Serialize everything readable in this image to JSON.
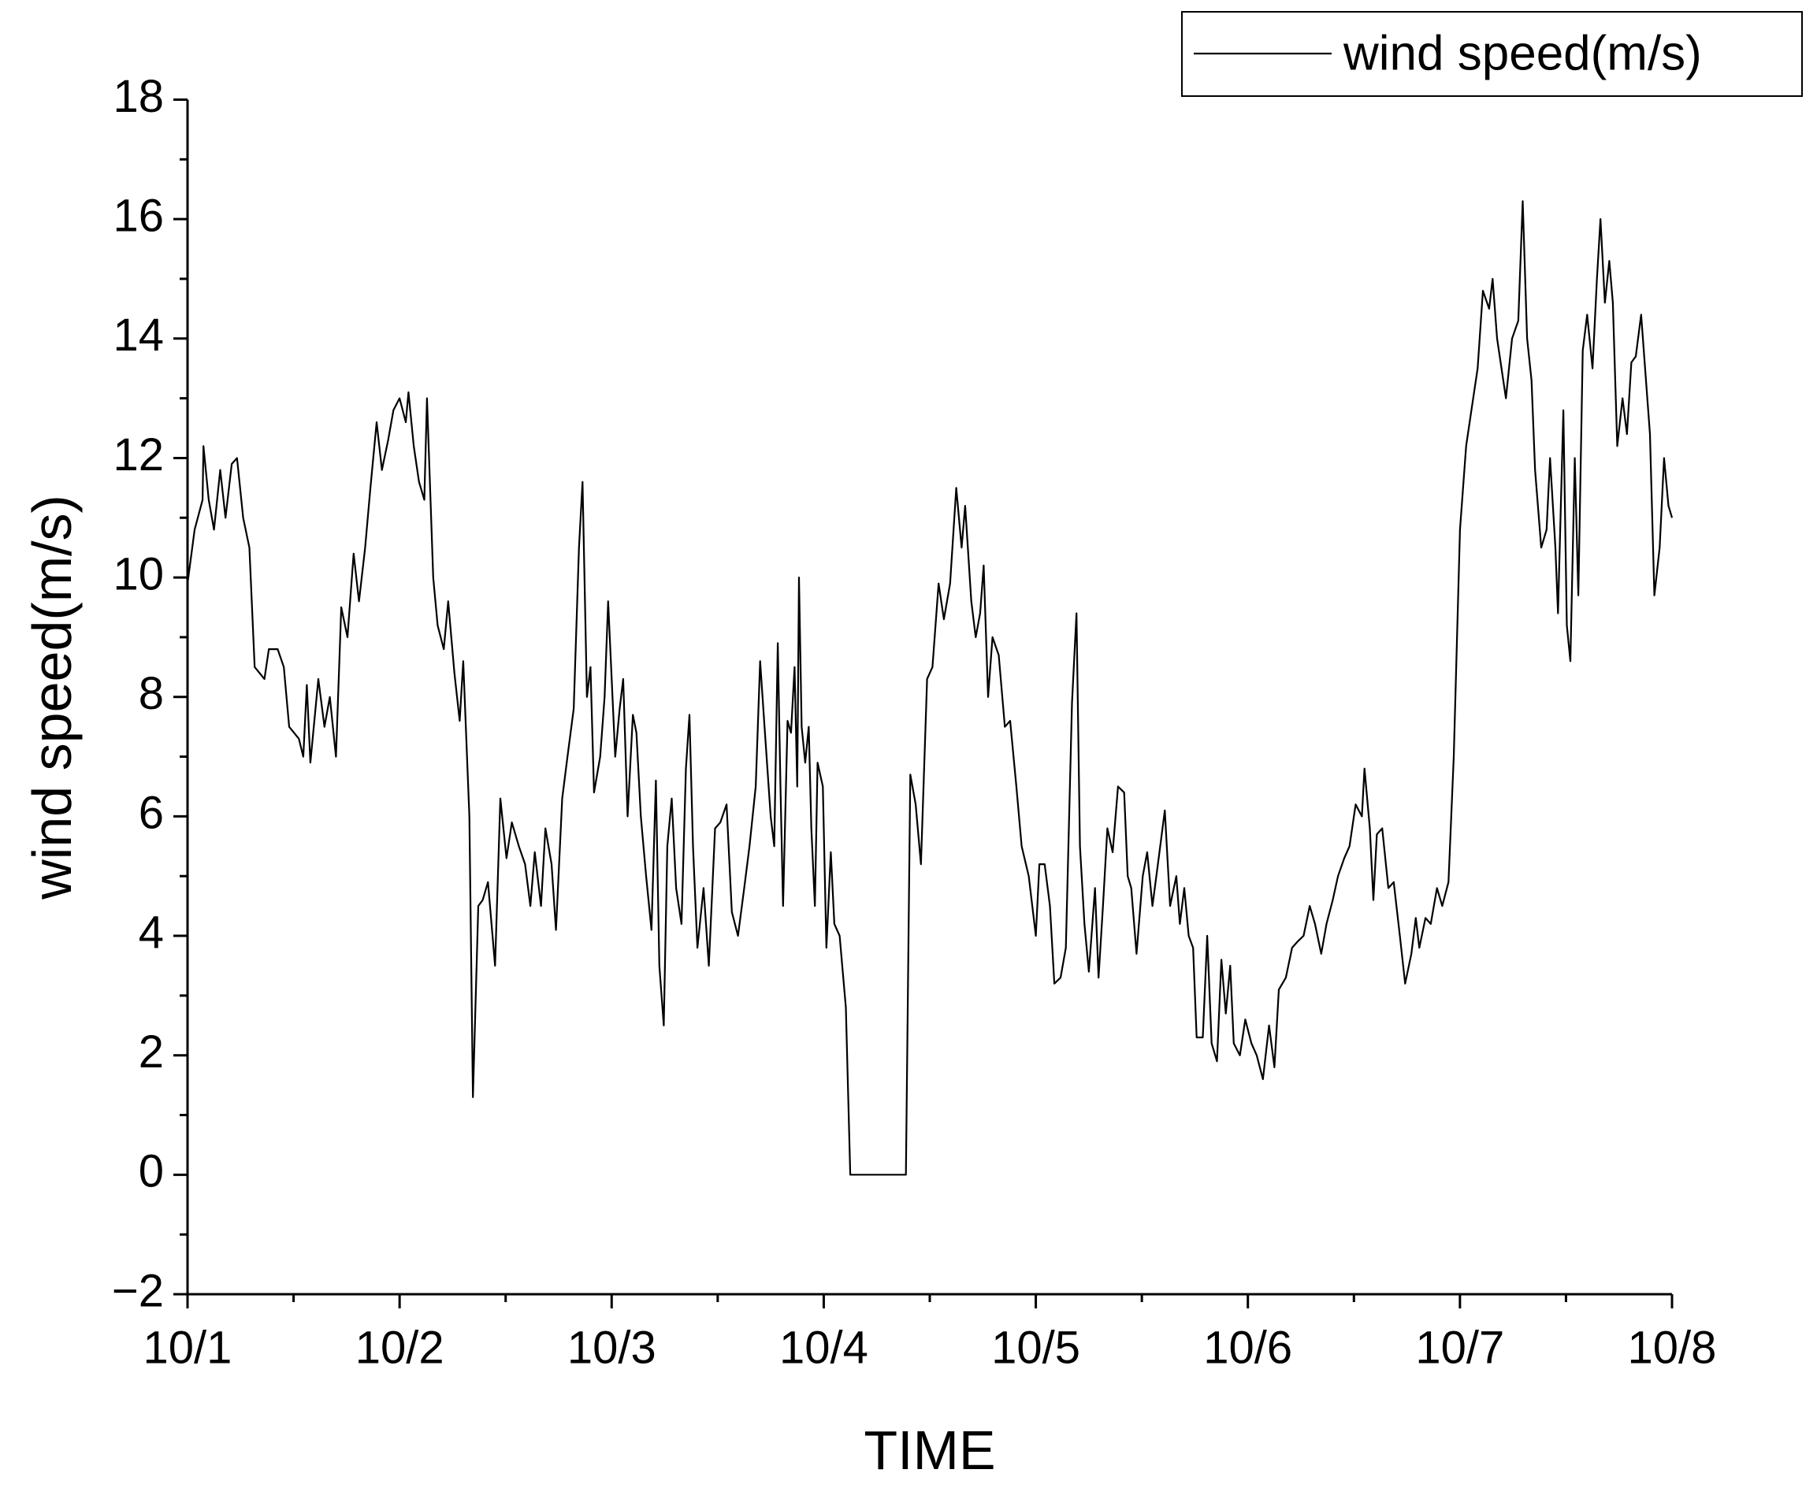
{
  "chart_data": {
    "type": "line",
    "xlabel": "TIME",
    "ylabel": "wind speed(m/s)",
    "legend": "top-right",
    "xlim": [
      0,
      168
    ],
    "xticks": [
      {
        "value": 0,
        "label": "10/1"
      },
      {
        "value": 24,
        "label": "10/2"
      },
      {
        "value": 48,
        "label": "10/3"
      },
      {
        "value": 72,
        "label": "10/4"
      },
      {
        "value": 96,
        "label": "10/5"
      },
      {
        "value": 120,
        "label": "10/6"
      },
      {
        "value": 144,
        "label": "10/7"
      },
      {
        "value": 168,
        "label": "10/8"
      }
    ],
    "xminorticks": [
      12,
      36,
      60,
      84,
      108,
      132,
      156
    ],
    "ylim": [
      -2,
      18
    ],
    "yticks": [
      {
        "value": -2,
        "label": "−2"
      },
      0,
      2,
      4,
      6,
      8,
      10,
      12,
      14,
      16,
      18
    ],
    "yminorticks": [
      -1,
      1,
      3,
      5,
      7,
      9,
      11,
      13,
      15,
      17
    ],
    "x": [
      0,
      0.8,
      1.7,
      1.8,
      2.4,
      3.0,
      3.7,
      4.3,
      5.0,
      5.6,
      6.3,
      7.0,
      7.6,
      8.7,
      9.2,
      10.2,
      10.9,
      11.5,
      12.6,
      13.1,
      13.5,
      13.9,
      14.8,
      15.5,
      16.1,
      16.8,
      17.4,
      18.1,
      18.8,
      19.4,
      20.1,
      20.7,
      21.4,
      22.0,
      22.7,
      23.3,
      24.0,
      24.7,
      25.0,
      25.6,
      26.2,
      26.8,
      27.1,
      27.8,
      28.3,
      29.0,
      29.5,
      30.2,
      30.8,
      31.2,
      31.9,
      32.3,
      32.9,
      33.4,
      34.0,
      34.8,
      35.4,
      36.1,
      36.7,
      37.5,
      38.2,
      38.8,
      39.3,
      40.0,
      40.5,
      41.2,
      41.7,
      42.4,
      43.0,
      43.7,
      44.3,
      44.7,
      45.2,
      45.6,
      46.0,
      46.7,
      47.2,
      47.6,
      48.0,
      48.4,
      48.9,
      49.3,
      49.8,
      50.4,
      50.8,
      51.3,
      51.9,
      52.5,
      53.0,
      53.4,
      53.9,
      54.3,
      54.8,
      55.3,
      55.9,
      56.4,
      56.8,
      57.2,
      57.7,
      58.4,
      59.0,
      59.7,
      60.3,
      61.0,
      61.6,
      62.3,
      63.0,
      63.6,
      64.3,
      64.8,
      65.3,
      66.0,
      66.4,
      66.8,
      67.1,
      67.4,
      67.9,
      68.3,
      68.7,
      69.0,
      69.2,
      69.5,
      69.9,
      70.3,
      70.6,
      71.0,
      71.3,
      71.9,
      72.3,
      72.8,
      73.2,
      73.8,
      74.5,
      75.0,
      81.3,
      81.8,
      82.4,
      83.0,
      83.7,
      84.3,
      85.0,
      85.6,
      86.3,
      87.0,
      87.6,
      88.0,
      88.7,
      89.2,
      89.7,
      90.1,
      90.6,
      91.1,
      91.8,
      92.5,
      93.1,
      93.8,
      94.4,
      95.2,
      96.0,
      96.4,
      97.0,
      97.6,
      98.1,
      98.8,
      99.4,
      100.1,
      100.6,
      101.0,
      101.5,
      102.0,
      102.7,
      103.1,
      103.6,
      104.1,
      104.7,
      105.3,
      106.0,
      106.4,
      106.8,
      107.4,
      108.1,
      108.6,
      109.2,
      109.9,
      110.6,
      111.2,
      111.9,
      112.3,
      112.8,
      113.3,
      113.8,
      114.2,
      114.9,
      115.4,
      115.9,
      116.5,
      117.0,
      117.5,
      118.0,
      118.4,
      119.1,
      119.7,
      120.4,
      121.0,
      121.7,
      122.4,
      123.0,
      123.5,
      124.3,
      125.0,
      125.6,
      126.3,
      127.0,
      127.6,
      128.3,
      128.9,
      129.6,
      130.2,
      130.9,
      131.5,
      132.2,
      132.9,
      133.2,
      133.8,
      134.2,
      134.6,
      135.2,
      135.9,
      136.5,
      137.2,
      137.8,
      138.5,
      139.0,
      139.4,
      140.1,
      140.7,
      141.4,
      142.0,
      142.7,
      143.3,
      144.0,
      144.7,
      145.3,
      146.0,
      146.6,
      147.3,
      147.7,
      148.2,
      148.7,
      149.2,
      149.9,
      150.6,
      151.1,
      151.6,
      152.1,
      152.5,
      153.2,
      153.8,
      154.2,
      154.8,
      155.1,
      155.7,
      156.1,
      156.5,
      157.0,
      157.4,
      157.9,
      158.4,
      159.0,
      159.5,
      159.9,
      160.4,
      160.9,
      161.3,
      161.8,
      162.4,
      162.9,
      163.4,
      163.9,
      164.5,
      165.0,
      165.5,
      166.0,
      166.6,
      167.1,
      167.6,
      168.0
    ],
    "series": [
      {
        "name": "wind speed(m/s)",
        "color": "#000000",
        "values": [
          9.9,
          10.8,
          11.3,
          12.2,
          11.3,
          10.8,
          11.8,
          11.0,
          11.9,
          12.0,
          11.0,
          10.5,
          8.5,
          8.3,
          8.8,
          8.8,
          8.5,
          7.5,
          7.3,
          7.0,
          8.2,
          6.9,
          8.3,
          7.5,
          8.0,
          7.0,
          9.5,
          9.0,
          10.4,
          9.6,
          10.5,
          11.5,
          12.6,
          11.8,
          12.3,
          12.8,
          13.0,
          12.6,
          13.1,
          12.2,
          11.6,
          11.3,
          13.0,
          10.0,
          9.2,
          8.8,
          9.6,
          8.4,
          7.6,
          8.6,
          6.0,
          1.3,
          4.5,
          4.6,
          4.9,
          3.5,
          6.3,
          5.3,
          5.9,
          5.5,
          5.2,
          4.5,
          5.4,
          4.5,
          5.8,
          5.2,
          4.1,
          6.3,
          7.0,
          7.8,
          10.5,
          11.6,
          8.0,
          8.5,
          6.4,
          7.0,
          8.0,
          9.6,
          8.3,
          7.0,
          7.8,
          8.3,
          6.0,
          7.7,
          7.4,
          6.0,
          5.0,
          4.1,
          6.6,
          3.5,
          2.5,
          5.5,
          6.3,
          4.8,
          4.2,
          6.8,
          7.7,
          5.5,
          3.8,
          4.8,
          3.5,
          5.8,
          5.9,
          6.2,
          4.4,
          4.0,
          4.8,
          5.5,
          6.5,
          8.6,
          7.5,
          6.0,
          5.5,
          8.9,
          6.5,
          4.5,
          7.6,
          7.4,
          8.5,
          6.5,
          10.0,
          7.5,
          6.9,
          7.5,
          5.8,
          4.5,
          6.9,
          6.5,
          3.8,
          5.4,
          4.2,
          4.0,
          2.8,
          0,
          0,
          6.7,
          6.2,
          5.2,
          8.3,
          8.5,
          9.9,
          9.3,
          9.9,
          11.5,
          10.5,
          11.2,
          9.6,
          9.0,
          9.4,
          10.2,
          8.0,
          9.0,
          8.7,
          7.5,
          7.6,
          6.5,
          5.5,
          5.0,
          4.0,
          5.2,
          5.2,
          4.5,
          3.2,
          3.3,
          3.8,
          7.9,
          9.4,
          5.5,
          4.2,
          3.4,
          4.8,
          3.3,
          4.5,
          5.8,
          5.4,
          6.5,
          6.4,
          5.0,
          4.8,
          3.7,
          5.0,
          5.4,
          4.5,
          5.3,
          6.1,
          4.5,
          5.0,
          4.2,
          4.8,
          4.0,
          3.8,
          2.3,
          2.3,
          4.0,
          2.2,
          1.9,
          3.6,
          2.7,
          3.5,
          2.2,
          2.0,
          2.6,
          2.2,
          2.0,
          1.6,
          2.5,
          1.8,
          3.1,
          3.3,
          3.8,
          3.9,
          4.0,
          4.5,
          4.2,
          3.7,
          4.2,
          4.6,
          5.0,
          5.3,
          5.5,
          6.2,
          6.0,
          6.8,
          5.8,
          4.6,
          5.7,
          5.8,
          4.8,
          4.9,
          4.0,
          3.2,
          3.7,
          4.3,
          3.8,
          4.3,
          4.2,
          4.8,
          4.5,
          4.9,
          7.0,
          10.8,
          12.2,
          12.8,
          13.5,
          14.8,
          14.5,
          15.0,
          14.0,
          13.5,
          13.0,
          14.0,
          14.3,
          16.3,
          14.0,
          13.3,
          11.8,
          10.5,
          10.8,
          12.0,
          10.5,
          9.4,
          12.8,
          9.2,
          8.6,
          12.0,
          9.7,
          13.8,
          14.4,
          13.5,
          15.0,
          16.0,
          14.6,
          15.3,
          14.6,
          12.2,
          13.0,
          12.4,
          13.6,
          13.7,
          14.4,
          13.4,
          12.4,
          9.7,
          10.5,
          12.0,
          11.2,
          11.0
        ]
      }
    ]
  }
}
